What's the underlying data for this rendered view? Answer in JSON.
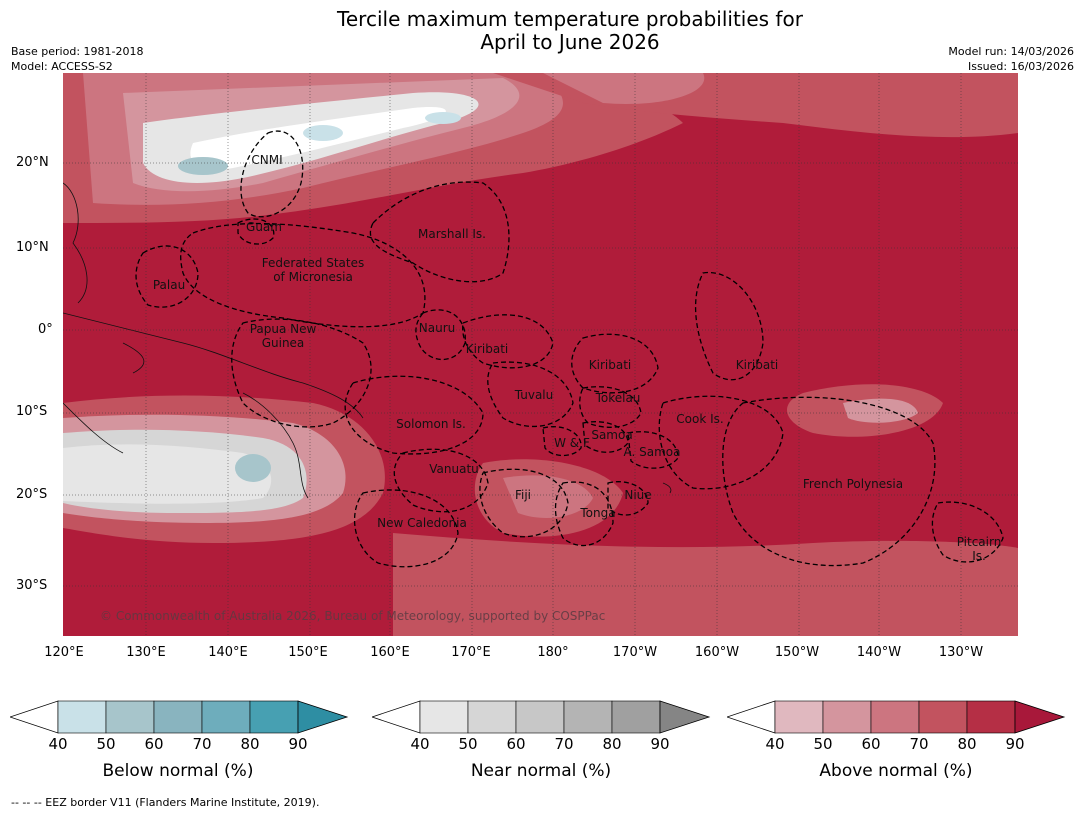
{
  "title": {
    "line1": "Tercile maximum temperature probabilities for",
    "line2": "April to June 2026"
  },
  "meta": {
    "base_period": "Base period: 1981-2018",
    "model": "Model: ACCESS-S2",
    "model_run": "Model run: 14/03/2026",
    "issued": "Issued: 16/03/2026"
  },
  "axes": {
    "lat_labels": [
      "20°N",
      "10°N",
      "0°",
      "10°S",
      "20°S",
      "30°S"
    ],
    "lon_labels": [
      "120°E",
      "130°E",
      "140°E",
      "150°E",
      "160°E",
      "170°E",
      "180°",
      "170°W",
      "160°W",
      "150°W",
      "140°W",
      "130°W"
    ]
  },
  "regions": {
    "cnmi": "CNMI",
    "guam": "Guam",
    "marshall": "Marshall Is.",
    "fsm1": "Federated States",
    "fsm2": "of Micronesia",
    "palau": "Palau",
    "png1": "Papua New",
    "png2": "Guinea",
    "nauru": "Nauru",
    "kiribati_w": "Kiribati",
    "kiribati_c": "Kiribati",
    "kiribati_e": "Kiribati",
    "tuvalu": "Tuvalu",
    "tokelau": "Tokelau",
    "solomon": "Solomon Is.",
    "wf": "W & F",
    "samoa": "Samoa",
    "asamoa": "A. Samoa",
    "cook": "Cook Is.",
    "vanuatu": "Vanuatu",
    "fiji": "Fiji",
    "niue": "Niue",
    "tonga": "Tonga",
    "frpoly": "French Polynesia",
    "newcal": "New Caledonia",
    "pitcairn1": "Pitcairn",
    "pitcairn2": "Is."
  },
  "copyright": "© Commonwealth of Australia 2026, Bureau of Meteorology, supported by COSPPac",
  "colorbars": {
    "below": {
      "label": "Below normal (%)",
      "colors": [
        "#c9e1e8",
        "#a7c5cb",
        "#89b4bf",
        "#6eadbc",
        "#47a0b2",
        "#2e8ea3"
      ],
      "ticks": [
        "40",
        "50",
        "60",
        "70",
        "80",
        "90"
      ]
    },
    "near": {
      "label": "Near normal (%)",
      "colors": [
        "#e6e6e6",
        "#d6d6d6",
        "#c7c7c7",
        "#b4b4b4",
        "#a0a0a0",
        "#858585"
      ],
      "ticks": [
        "40",
        "50",
        "60",
        "70",
        "80",
        "90"
      ]
    },
    "above": {
      "label": "Above normal (%)",
      "colors": [
        "#e0b8bf",
        "#d4959e",
        "#cc7580",
        "#c2535f",
        "#b52f45",
        "#a8183a"
      ],
      "ticks": [
        "40",
        "50",
        "60",
        "70",
        "80",
        "90"
      ]
    }
  },
  "footnote": "-- -- -- EEZ border V11 (Flanders Marine Institute, 2019)."
}
